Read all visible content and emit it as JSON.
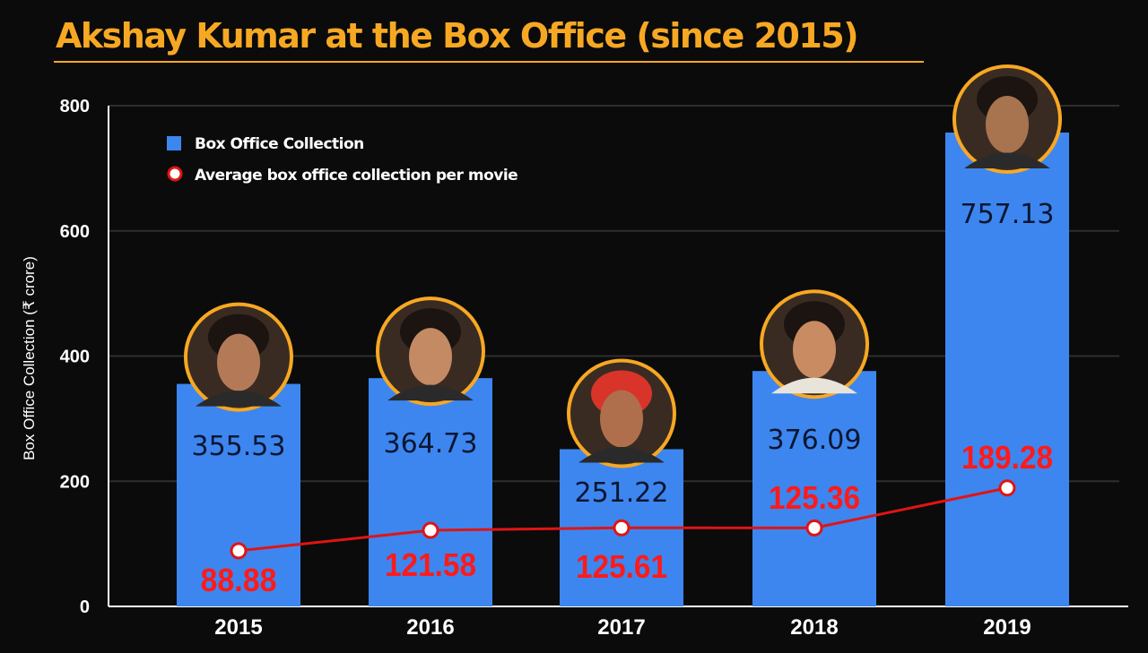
{
  "title": "Akshay Kumar at the Box Office (since 2015)",
  "colors": {
    "background": "#0b0b0b",
    "title": "#f7a823",
    "bar": "#3d86f0",
    "line": "#e01414",
    "avg_label": "#ff1a1a",
    "portrait_ring": "#f7a823"
  },
  "chart_data": {
    "type": "bar",
    "title": "Akshay Kumar at the Box Office (since 2015)",
    "ylabel": "Box Office Collection (₹ crore)",
    "xlabel": "",
    "ylim": [
      0,
      800
    ],
    "yticks": [
      "0",
      "200",
      "400",
      "600",
      "800"
    ],
    "grid": true,
    "legend_position": "top-left",
    "categories": [
      "2015",
      "2016",
      "2017",
      "2018",
      "2019"
    ],
    "series": [
      {
        "name": "Box Office Collection",
        "type": "bar",
        "values": [
          355.53,
          364.73,
          251.22,
          376.09,
          757.13
        ],
        "labels": [
          "355.53",
          "364.73",
          "251.22",
          "376.09",
          "757.13"
        ]
      },
      {
        "name": "Average box office collection per movie",
        "type": "line",
        "values": [
          88.88,
          121.58,
          125.61,
          125.36,
          189.28
        ],
        "labels": [
          "88.88",
          "121.58",
          "125.61",
          "125.36",
          "189.28"
        ]
      }
    ],
    "annotations": [
      "actor portrait above each bar"
    ]
  }
}
